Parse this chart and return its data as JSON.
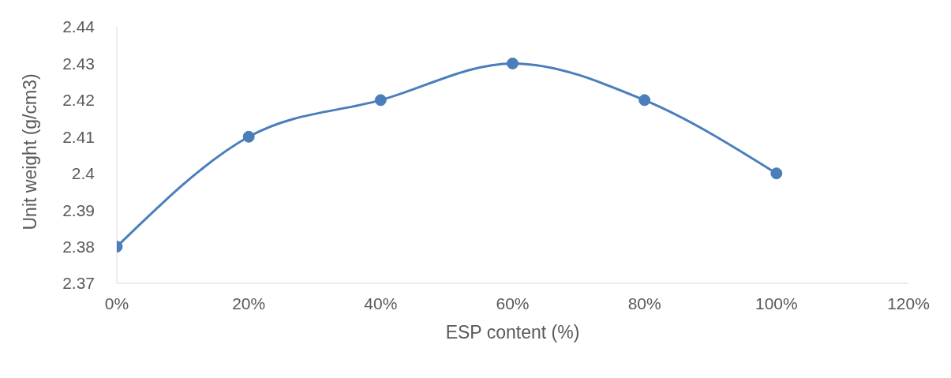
{
  "chart_data": {
    "type": "line",
    "xlabel": "ESP content (%)",
    "ylabel": "Unit weight (g/cm3)",
    "x": [
      0,
      20,
      40,
      60,
      80,
      100
    ],
    "series": [
      {
        "color": "#4a7ebb",
        "values": [
          2.38,
          2.41,
          2.42,
          2.43,
          2.42,
          2.4
        ]
      }
    ],
    "xlim": [
      0,
      120
    ],
    "xticks": [
      {
        "value": 0,
        "label": "0%"
      },
      {
        "value": 20,
        "label": "20%"
      },
      {
        "value": 40,
        "label": "40%"
      },
      {
        "value": 60,
        "label": "60%"
      },
      {
        "value": 80,
        "label": "80%"
      },
      {
        "value": 100,
        "label": "100%"
      },
      {
        "value": 120,
        "label": "120%"
      }
    ],
    "ylim": [
      2.37,
      2.44
    ],
    "yticks": [
      2.37,
      2.38,
      2.39,
      2.4,
      2.41,
      2.42,
      2.43,
      2.44
    ],
    "grid": false,
    "legend": false,
    "marker": "circle",
    "line_style": "solid"
  }
}
